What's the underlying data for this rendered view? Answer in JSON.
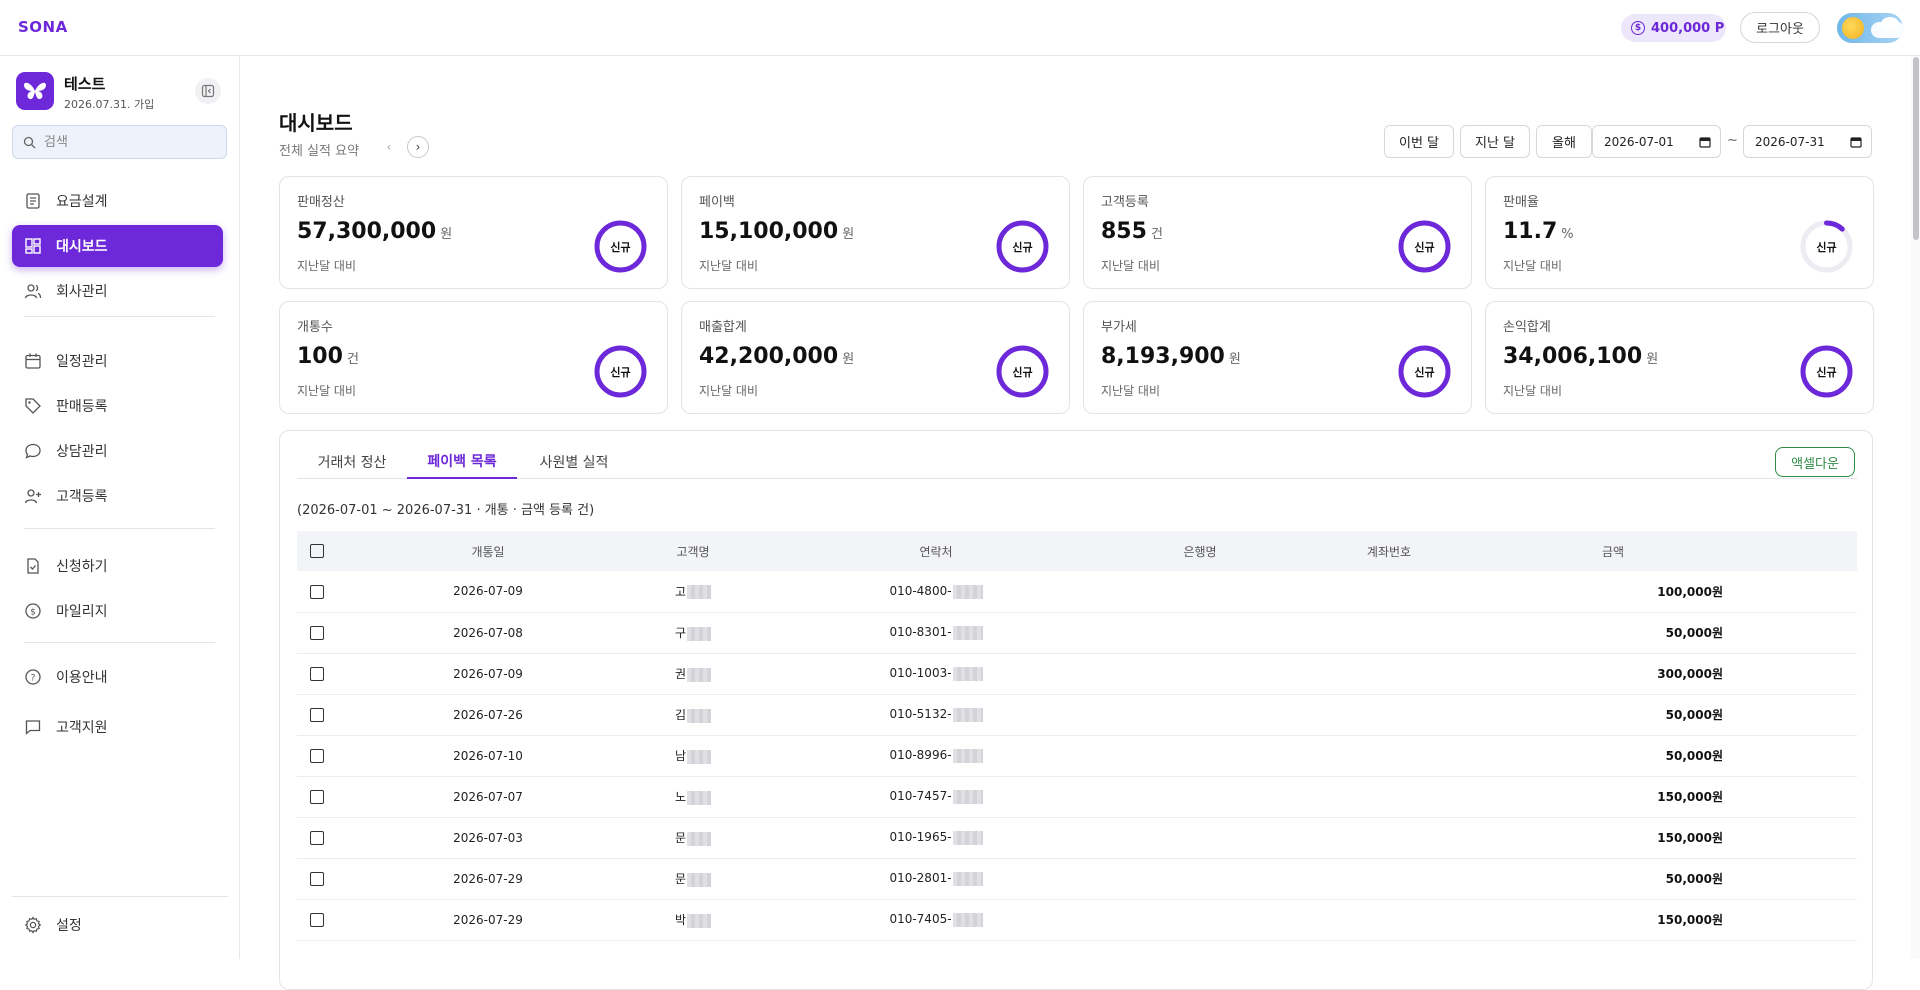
{
  "header": {
    "brand": "SONA",
    "points": "400,000 P",
    "logout": "로그아웃"
  },
  "sidebar": {
    "profile": {
      "name": "테스트",
      "joined": "2026.07.31. 가입"
    },
    "search_placeholder": "검색",
    "items": [
      {
        "label": "요금설계",
        "icon": "document-icon"
      },
      {
        "label": "대시보드",
        "icon": "dashboard-icon",
        "active": true
      },
      {
        "label": "회사관리",
        "icon": "users-icon"
      },
      {
        "label": "일정관리",
        "icon": "calendar-icon"
      },
      {
        "label": "판매등록",
        "icon": "tag-icon"
      },
      {
        "label": "상담관리",
        "icon": "chat-icon"
      },
      {
        "label": "고객등록",
        "icon": "user-plus-icon"
      },
      {
        "label": "신청하기",
        "icon": "file-check-icon"
      },
      {
        "label": "마일리지",
        "icon": "coin-icon"
      },
      {
        "label": "이용안내",
        "icon": "help-icon"
      },
      {
        "label": "고객지원",
        "icon": "message-icon"
      }
    ],
    "settings": "설정"
  },
  "main": {
    "title": "대시보드",
    "subtitle": "전체 실적 요약",
    "range_buttons": [
      "이번 달",
      "지난 달",
      "올해"
    ],
    "date_from": "2026-07-01",
    "date_to": "2026-07-31",
    "tilde": "~"
  },
  "cards": [
    {
      "label": "판매정산",
      "value": "57,300,000",
      "unit": "원",
      "compare": "지난달 대비",
      "ring": "신규",
      "fill": 1.0
    },
    {
      "label": "페이백",
      "value": "15,100,000",
      "unit": "원",
      "compare": "지난달 대비",
      "ring": "신규",
      "fill": 1.0
    },
    {
      "label": "고객등록",
      "value": "855",
      "unit": "건",
      "compare": "지난달 대비",
      "ring": "신규",
      "fill": 1.0
    },
    {
      "label": "판매율",
      "value": "11.7",
      "unit": "%",
      "compare": "지난달 대비",
      "ring": "신규",
      "fill": 0.117
    },
    {
      "label": "개통수",
      "value": "100",
      "unit": "건",
      "compare": "지난달 대비",
      "ring": "신규",
      "fill": 1.0
    },
    {
      "label": "매출합계",
      "value": "42,200,000",
      "unit": "원",
      "compare": "지난달 대비",
      "ring": "신규",
      "fill": 1.0
    },
    {
      "label": "부가세",
      "value": "8,193,900",
      "unit": "원",
      "compare": "지난달 대비",
      "ring": "신규",
      "fill": 1.0
    },
    {
      "label": "손익합계",
      "value": "34,006,100",
      "unit": "원",
      "compare": "지난달 대비",
      "ring": "신규",
      "fill": 1.0
    }
  ],
  "panel": {
    "tabs": [
      "거래처 정산",
      "페이백 목록",
      "사원별 실적"
    ],
    "active_tab": 1,
    "excel_button": "액셀다운",
    "caption": "(2026-07-01 ~ 2026-07-31 · 개통 · 금액 등록 건)",
    "columns": [
      "개통일",
      "고객명",
      "연락처",
      "은행명",
      "계좌번호",
      "금액"
    ],
    "rows": [
      {
        "date": "2026-07-09",
        "name": "고",
        "phone": "010-4800-",
        "bank": "",
        "account": "",
        "amount": "100,000원"
      },
      {
        "date": "2026-07-08",
        "name": "구",
        "phone": "010-8301-",
        "bank": "",
        "account": "",
        "amount": "50,000원"
      },
      {
        "date": "2026-07-09",
        "name": "권",
        "phone": "010-1003-",
        "bank": "",
        "account": "",
        "amount": "300,000원"
      },
      {
        "date": "2026-07-26",
        "name": "김",
        "phone": "010-5132-",
        "bank": "",
        "account": "",
        "amount": "50,000원"
      },
      {
        "date": "2026-07-10",
        "name": "남",
        "phone": "010-8996-",
        "bank": "",
        "account": "",
        "amount": "50,000원"
      },
      {
        "date": "2026-07-07",
        "name": "노",
        "phone": "010-7457-",
        "bank": "",
        "account": "",
        "amount": "150,000원"
      },
      {
        "date": "2026-07-03",
        "name": "문",
        "phone": "010-1965-",
        "bank": "",
        "account": "",
        "amount": "150,000원"
      },
      {
        "date": "2026-07-29",
        "name": "문",
        "phone": "010-2801-",
        "bank": "",
        "account": "",
        "amount": "50,000원"
      },
      {
        "date": "2026-07-29",
        "name": "박",
        "phone": "010-7405-",
        "bank": "",
        "account": "",
        "amount": "150,000원"
      }
    ]
  },
  "colors": {
    "accent": "#6d28d9",
    "excel": "#2f8a44",
    "ring_track": "#ececf2"
  }
}
